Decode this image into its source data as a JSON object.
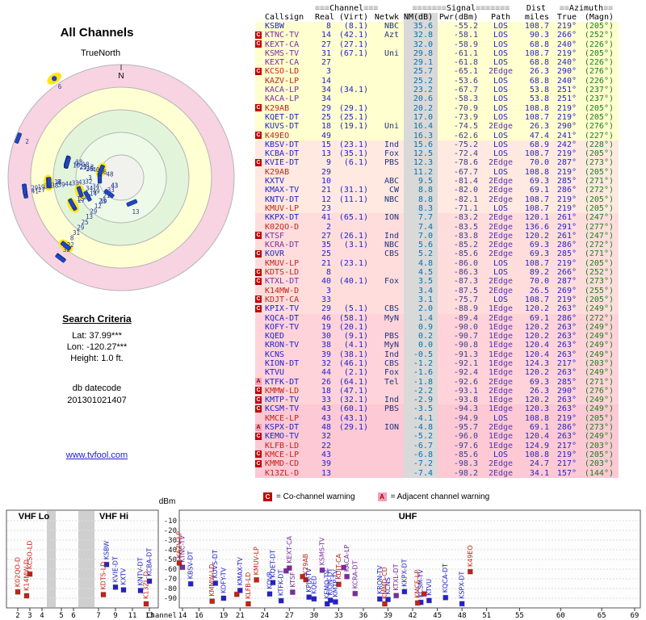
{
  "left": {
    "title": "All Channels",
    "true_north": "TrueNorth",
    "search": {
      "title": "Search Criteria",
      "lat": "Lat: 37.99***",
      "lon": "Lon: -120.27***",
      "height": "Height: 1.0 ft."
    },
    "datecode_label": "db datecode",
    "datecode": "201301021407",
    "link": "www.tvfool.com"
  },
  "radar": {
    "n_label": "N",
    "extra": [
      {
        "label": "6",
        "az": 326,
        "dist": 150
      }
    ]
  },
  "palette": {
    "b": "#2222cc",
    "p": "#7a2da0",
    "r": "#c22418"
  },
  "legend": {
    "c": "C",
    "c_label": "= Co-channel warning",
    "a": "A",
    "a_label": "= Adjacent channel warning"
  },
  "spectrum": {
    "dbm": "dBm",
    "channel": "Channel",
    "vhf_lo": "VHF Lo",
    "vhf_hi": "VHF Hi",
    "uhf": "UHF"
  },
  "table": {
    "header": {
      "ch_pre": "≡≡≡",
      "channel": "Channel",
      "ch_post": "≡≡≡",
      "sig_pre": "≡≡≡≡≡≡≡",
      "signal": "Signal",
      "sig_post": "≡≡≡≡≡≡≡",
      "dist": "Dist",
      "az_pre": "≡≡",
      "azimuth": "Azimuth",
      "az_post": "≡≡",
      "cols": [
        "Callsign",
        "Real",
        "(Virt)",
        "Netwk",
        "NM(dB)",
        "Pwr(dBm)",
        "Path",
        "miles",
        "True",
        "(Magn)"
      ]
    },
    "rows": [
      {
        "w": "",
        "c": "KSBW",
        "k": "b",
        "r": "8",
        "v": "(8.1)",
        "n": "NBC",
        "nm": "35.6",
        "pw": "-55.2",
        "p": "LOS",
        "mi": "108.7",
        "t": "219°",
        "m": "(205°)"
      },
      {
        "w": "C",
        "c": "KTNC-TV",
        "k": "p",
        "r": "14",
        "v": "(42.1)",
        "n": "Azt",
        "nm": "32.8",
        "pw": "-58.1",
        "p": "LOS",
        "mi": "90.3",
        "t": "266°",
        "m": "(252°)"
      },
      {
        "w": "C",
        "c": "KEXT-CA",
        "k": "p",
        "r": "27",
        "v": "(27.1)",
        "n": "",
        "nm": "32.0",
        "pw": "-58.9",
        "p": "LOS",
        "mi": "68.8",
        "t": "240°",
        "m": "(226°)"
      },
      {
        "w": "",
        "c": "KSMS-TV",
        "k": "p",
        "r": "31",
        "v": "(67.1)",
        "n": "Uni",
        "nm": "29.8",
        "pw": "-61.1",
        "p": "LOS",
        "mi": "108.7",
        "t": "219°",
        "m": "(205°)"
      },
      {
        "w": "",
        "c": "KEXT-CA",
        "k": "p",
        "r": "27",
        "v": "",
        "n": "",
        "nm": "29.1",
        "pw": "-61.8",
        "p": "LOS",
        "mi": "68.8",
        "t": "240°",
        "m": "(226°)"
      },
      {
        "w": "C",
        "c": "KCSO-LD",
        "k": "r",
        "r": "3",
        "v": "",
        "n": "",
        "nm": "25.7",
        "pw": "-65.1",
        "p": "2Edge",
        "mi": "26.3",
        "t": "290°",
        "m": "(276°)"
      },
      {
        "w": "",
        "c": "KAZV-LP",
        "k": "r",
        "r": "14",
        "v": "",
        "n": "",
        "nm": "25.2",
        "pw": "-53.6",
        "p": "LOS",
        "mi": "68.8",
        "t": "240°",
        "m": "(226°)"
      },
      {
        "w": "",
        "c": "KACA-LP",
        "k": "p",
        "r": "34",
        "v": "(34.1)",
        "n": "",
        "nm": "23.2",
        "pw": "-67.7",
        "p": "LOS",
        "mi": "53.8",
        "t": "251°",
        "m": "(237°)"
      },
      {
        "w": "",
        "c": "KACA-LP",
        "k": "p",
        "r": "34",
        "v": "",
        "n": "",
        "nm": "20.6",
        "pw": "-58.3",
        "p": "LOS",
        "mi": "53.8",
        "t": "251°",
        "m": "(237°)"
      },
      {
        "w": "C",
        "c": "K29AB",
        "k": "r",
        "r": "29",
        "v": "(29.1)",
        "n": "",
        "nm": "20.2",
        "pw": "-70.9",
        "p": "LOS",
        "mi": "108.8",
        "t": "219°",
        "m": "(205°)"
      },
      {
        "w": "",
        "c": "KQET-DT",
        "k": "b",
        "r": "25",
        "v": "(25.1)",
        "n": "",
        "nm": "17.0",
        "pw": "-73.9",
        "p": "LOS",
        "mi": "108.7",
        "t": "219°",
        "m": "(205°)"
      },
      {
        "w": "",
        "c": "KUVS-DT",
        "k": "b",
        "r": "18",
        "v": "(19.1)",
        "n": "Uni",
        "nm": "16.4",
        "pw": "-74.5",
        "p": "2Edge",
        "mi": "26.3",
        "t": "290°",
        "m": "(276°)"
      },
      {
        "w": "C",
        "c": "K49EO",
        "k": "r",
        "r": "49",
        "v": "",
        "n": "",
        "nm": "16.3",
        "pw": "-62.6",
        "p": "LOS",
        "mi": "47.4",
        "t": "241°",
        "m": "(227°)"
      },
      {
        "w": "",
        "c": "KBSV-DT",
        "k": "b",
        "r": "15",
        "v": "(23.1)",
        "n": "Ind",
        "nm": "15.6",
        "pw": "-75.2",
        "p": "LOS",
        "mi": "68.9",
        "t": "242°",
        "m": "(228°)"
      },
      {
        "w": "",
        "c": "KCBA-DT",
        "k": "b",
        "r": "13",
        "v": "(35.1)",
        "n": "Fox",
        "nm": "12.5",
        "pw": "-72.4",
        "p": "LOS",
        "mi": "108.7",
        "t": "219°",
        "m": "(205°)"
      },
      {
        "w": "C",
        "c": "KVIE-DT",
        "k": "b",
        "r": "9",
        "v": "(6.1)",
        "n": "PBS",
        "nm": "12.3",
        "pw": "-78.6",
        "p": "2Edge",
        "mi": "70.0",
        "t": "287°",
        "m": "(273°)"
      },
      {
        "w": "",
        "c": "K29AB",
        "k": "r",
        "r": "29",
        "v": "",
        "n": "",
        "nm": "11.2",
        "pw": "-67.7",
        "p": "LOS",
        "mi": "108.8",
        "t": "219°",
        "m": "(205°)"
      },
      {
        "w": "",
        "c": "KXTV",
        "k": "b",
        "r": "10",
        "v": "",
        "n": "ABC",
        "nm": "9.5",
        "pw": "-81.4",
        "p": "2Edge",
        "mi": "69.3",
        "t": "285°",
        "m": "(271°)"
      },
      {
        "w": "",
        "c": "KMAX-TV",
        "k": "b",
        "r": "21",
        "v": "(31.1)",
        "n": "CW",
        "nm": "8.8",
        "pw": "-82.0",
        "p": "2Edge",
        "mi": "69.1",
        "t": "286°",
        "m": "(272°)"
      },
      {
        "w": "",
        "c": "KNTV-DT",
        "k": "b",
        "r": "12",
        "v": "(11.1)",
        "n": "NBC",
        "nm": "8.8",
        "pw": "-82.1",
        "p": "2Edge",
        "mi": "108.7",
        "t": "219°",
        "m": "(205°)"
      },
      {
        "w": "",
        "c": "KMUV-LP",
        "k": "r",
        "r": "23",
        "v": "",
        "n": "",
        "nm": "8.3",
        "pw": "-71.1",
        "p": "LOS",
        "mi": "108.7",
        "t": "219°",
        "m": "(205°)"
      },
      {
        "w": "",
        "c": "KKPX-DT",
        "k": "b",
        "r": "41",
        "v": "(65.1)",
        "n": "ION",
        "nm": "7.7",
        "pw": "-83.2",
        "p": "2Edge",
        "mi": "120.1",
        "t": "261°",
        "m": "(247°)"
      },
      {
        "w": "",
        "c": "K02QO-D",
        "k": "r",
        "r": "2",
        "v": "",
        "n": "",
        "nm": "7.4",
        "pw": "-83.5",
        "p": "2Edge",
        "mi": "136.6",
        "t": "291°",
        "m": "(277°)"
      },
      {
        "w": "C",
        "c": "KTSF",
        "k": "p",
        "r": "27",
        "v": "(26.1)",
        "n": "Ind",
        "nm": "7.0",
        "pw": "-83.8",
        "p": "2Edge",
        "mi": "120.2",
        "t": "261°",
        "m": "(247°)"
      },
      {
        "w": "",
        "c": "KCRA-DT",
        "k": "p",
        "r": "35",
        "v": "(3.1)",
        "n": "NBC",
        "nm": "5.6",
        "pw": "-85.2",
        "p": "2Edge",
        "mi": "69.3",
        "t": "286°",
        "m": "(272°)"
      },
      {
        "w": "C",
        "c": "KOVR",
        "k": "b",
        "r": "25",
        "v": "",
        "n": "CBS",
        "nm": "5.2",
        "pw": "-85.6",
        "p": "2Edge",
        "mi": "69.3",
        "t": "285°",
        "m": "(271°)"
      },
      {
        "w": "",
        "c": "KMUV-LP",
        "k": "r",
        "r": "21",
        "v": "(23.1)",
        "n": "",
        "nm": "4.8",
        "pw": "-86.0",
        "p": "LOS",
        "mi": "108.7",
        "t": "219°",
        "m": "(205°)"
      },
      {
        "w": "C",
        "c": "KDTS-LD",
        "k": "r",
        "r": "8",
        "v": "",
        "n": "",
        "nm": "4.5",
        "pw": "-86.3",
        "p": "LOS",
        "mi": "89.2",
        "t": "266°",
        "m": "(252°)"
      },
      {
        "w": "C",
        "c": "KTXL-DT",
        "k": "p",
        "r": "40",
        "v": "(40.1)",
        "n": "Fox",
        "nm": "3.5",
        "pw": "-87.3",
        "p": "2Edge",
        "mi": "70.0",
        "t": "287°",
        "m": "(273°)"
      },
      {
        "w": "",
        "c": "K14MW-D",
        "k": "r",
        "r": "3",
        "v": "",
        "n": "",
        "nm": "3.4",
        "pw": "-87.5",
        "p": "2Edge",
        "mi": "26.5",
        "t": "269°",
        "m": "(255°)"
      },
      {
        "w": "C",
        "c": "KDJT-CA",
        "k": "r",
        "r": "33",
        "v": "",
        "n": "",
        "nm": "3.1",
        "pw": "-75.7",
        "p": "LOS",
        "mi": "108.7",
        "t": "219°",
        "m": "(205°)"
      },
      {
        "w": "C",
        "c": "KPIX-TV",
        "k": "b",
        "r": "29",
        "v": "(5.1)",
        "n": "CBS",
        "nm": "2.0",
        "pw": "-88.9",
        "p": "1Edge",
        "mi": "120.2",
        "t": "263°",
        "m": "(249°)"
      },
      {
        "w": "",
        "c": "KQCA-DT",
        "k": "b",
        "r": "46",
        "v": "(58.1)",
        "n": "MyN",
        "nm": "1.4",
        "pw": "-89.4",
        "p": "2Edge",
        "mi": "69.1",
        "t": "286°",
        "m": "(272°)"
      },
      {
        "w": "",
        "c": "KOFY-TV",
        "k": "b",
        "r": "19",
        "v": "(20.1)",
        "n": "",
        "nm": "0.9",
        "pw": "-90.0",
        "p": "1Edge",
        "mi": "120.2",
        "t": "263°",
        "m": "(249°)"
      },
      {
        "w": "",
        "c": "KQED",
        "k": "b",
        "r": "30",
        "v": "(9.1)",
        "n": "PBS",
        "nm": "0.2",
        "pw": "-90.7",
        "p": "1Edge",
        "mi": "120.2",
        "t": "263°",
        "m": "(249°)"
      },
      {
        "w": "",
        "c": "KRON-TV",
        "k": "b",
        "r": "38",
        "v": "(4.1)",
        "n": "MyN",
        "nm": "0.0",
        "pw": "-90.8",
        "p": "1Edge",
        "mi": "120.4",
        "t": "263°",
        "m": "(249°)"
      },
      {
        "w": "",
        "c": "KCNS",
        "k": "b",
        "r": "39",
        "v": "(38.1)",
        "n": "Ind",
        "nm": "-0.5",
        "pw": "-91.3",
        "p": "1Edge",
        "mi": "120.4",
        "t": "263°",
        "m": "(249°)"
      },
      {
        "w": "",
        "c": "KION-DT",
        "k": "b",
        "r": "32",
        "v": "(46.1)",
        "n": "CBS",
        "nm": "-1.2",
        "pw": "-92.1",
        "p": "1Edge",
        "mi": "124.3",
        "t": "217°",
        "m": "(203°)"
      },
      {
        "w": "",
        "c": "KTVU",
        "k": "b",
        "r": "44",
        "v": "(2.1)",
        "n": "Fox",
        "nm": "-1.6",
        "pw": "-92.4",
        "p": "1Edge",
        "mi": "120.2",
        "t": "263°",
        "m": "(249°)"
      },
      {
        "w": "A",
        "c": "KTFK-DT",
        "k": "b",
        "r": "26",
        "v": "(64.1)",
        "n": "Tel",
        "nm": "-1.8",
        "pw": "-92.6",
        "p": "2Edge",
        "mi": "69.3",
        "t": "285°",
        "m": "(271°)"
      },
      {
        "w": "C",
        "c": "KMMW-LD",
        "k": "r",
        "r": "18",
        "v": "(47.1)",
        "n": "",
        "nm": "-2.2",
        "pw": "-93.1",
        "p": "2Edge",
        "mi": "26.3",
        "t": "290°",
        "m": "(276°)"
      },
      {
        "w": "C",
        "c": "KMTP-TV",
        "k": "b",
        "r": "33",
        "v": "(32.1)",
        "n": "Ind",
        "nm": "-2.9",
        "pw": "-93.8",
        "p": "1Edge",
        "mi": "120.2",
        "t": "263°",
        "m": "(249°)"
      },
      {
        "w": "C",
        "c": "KCSM-TV",
        "k": "b",
        "r": "43",
        "v": "(60.1)",
        "n": "PBS",
        "nm": "-3.5",
        "pw": "-94.3",
        "p": "1Edge",
        "mi": "120.3",
        "t": "263°",
        "m": "(249°)"
      },
      {
        "w": "",
        "c": "KMCE-LP",
        "k": "r",
        "r": "43",
        "v": "(43.1)",
        "n": "",
        "nm": "-4.1",
        "pw": "-94.9",
        "p": "LOS",
        "mi": "108.8",
        "t": "219°",
        "m": "(205°)"
      },
      {
        "w": "A",
        "c": "KSPX-DT",
        "k": "b",
        "r": "48",
        "v": "(29.1)",
        "n": "ION",
        "nm": "-4.8",
        "pw": "-95.7",
        "p": "2Edge",
        "mi": "69.1",
        "t": "286°",
        "m": "(273°)"
      },
      {
        "w": "C",
        "c": "KEMO-TV",
        "k": "b",
        "r": "32",
        "v": "",
        "n": "",
        "nm": "-5.2",
        "pw": "-96.0",
        "p": "1Edge",
        "mi": "120.4",
        "t": "263°",
        "m": "(249°)"
      },
      {
        "w": "",
        "c": "KLFB-LD",
        "k": "r",
        "r": "22",
        "v": "",
        "n": "",
        "nm": "-6.7",
        "pw": "-97.6",
        "p": "1Edge",
        "mi": "124.9",
        "t": "217°",
        "m": "(203°)"
      },
      {
        "w": "C",
        "c": "KMCE-LP",
        "k": "r",
        "r": "43",
        "v": "",
        "n": "",
        "nm": "-6.8",
        "pw": "-85.6",
        "p": "LOS",
        "mi": "108.8",
        "t": "219°",
        "m": "(205°)"
      },
      {
        "w": "C",
        "c": "KMMD-CD",
        "k": "r",
        "r": "39",
        "v": "",
        "n": "",
        "nm": "-7.2",
        "pw": "-98.3",
        "p": "2Edge",
        "mi": "24.7",
        "t": "217°",
        "m": "(203°)"
      },
      {
        "w": "",
        "c": "K13ZL-D",
        "k": "r",
        "r": "13",
        "v": "",
        "n": "",
        "nm": "-7.4",
        "pw": "-98.2",
        "p": "2Edge",
        "mi": "34.1",
        "t": "157°",
        "m": "(144°)"
      }
    ]
  },
  "chart_data": [
    {
      "type": "table",
      "name": "station-list",
      "note": "all values in table.rows of this JSON"
    },
    {
      "type": "scatter",
      "name": "all-channels-radar",
      "title": "All Channels",
      "polar": true,
      "note": "each table.rows entry plotted: bearing = True azimuth (deg clockwise from N), radius = Dist miles, marker label = Real channel",
      "rings_miles": [
        28,
        56,
        84,
        112,
        140
      ]
    },
    {
      "type": "scatter",
      "name": "signal-spectrum",
      "xlabel": "Channel",
      "ylabel": "dBm",
      "note": "each table.rows entry plotted at x = Real channel, y = Pwr(dBm), label = Callsign",
      "ylim": [
        -95,
        -10
      ],
      "yticks": [
        -10,
        -20,
        -30,
        -40,
        -50,
        -60,
        -70,
        -80,
        -90
      ],
      "vhf_ticks": [
        2,
        3,
        4,
        5,
        6,
        7,
        9,
        11,
        13
      ],
      "uhf_ticks": [
        14,
        16,
        19,
        21,
        24,
        27,
        30,
        33,
        36,
        39,
        42,
        45,
        48,
        51,
        55,
        60,
        65,
        69
      ]
    }
  ]
}
